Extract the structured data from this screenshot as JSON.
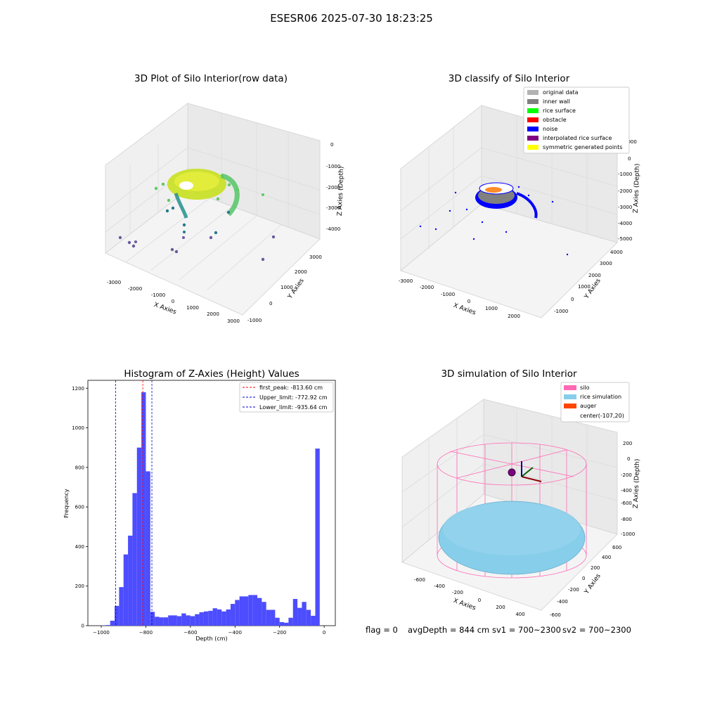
{
  "figure": {
    "suptitle": "ESESR06 2025-07-30 18:23:25"
  },
  "status_line": {
    "flag": "flag = 0",
    "avg_depth": "avgDepth = 844 cm",
    "sv1": "sv1 = 700~2300",
    "sv2": "sv2 = 700~2300"
  },
  "colors": {
    "histogram_bar": "#4d4dff",
    "first_peak_line": "#ff0000",
    "limit_lines": "#0000cc",
    "silo": "#ff69b4",
    "rice_simulation": "#87ceeb",
    "auger": "#ff4500",
    "noise": "#0000ff",
    "inner_wall": "#808080"
  },
  "chart_data": [
    {
      "type": "scatter",
      "title": "3D Plot of Silo Interior(row data)",
      "xlabel": "X Axies",
      "ylabel": "Y Axies",
      "zlabel": "Z Axies (Depth)",
      "x_ticks": [
        "-3000",
        "-2000",
        "-1000",
        "0",
        "1000",
        "2000",
        "3000"
      ],
      "y_ticks": [
        "-1000",
        "0",
        "1000",
        "2000",
        "3000"
      ],
      "z_ticks": [
        "0",
        "-1000",
        "-2000",
        "-3000",
        "-4000"
      ],
      "colormap": "viridis"
    },
    {
      "type": "scatter",
      "title": "3D classify of Silo Interior",
      "xlabel": "X Axies",
      "ylabel": "Y Axies",
      "zlabel": "Z Axies (Depth)",
      "x_ticks": [
        "-3000",
        "-2000",
        "-1000",
        "0",
        "1000",
        "2000"
      ],
      "y_ticks": [
        "-1000",
        "0",
        "1000",
        "2000",
        "3000",
        "4000"
      ],
      "z_ticks": [
        "1000",
        "0",
        "-1000",
        "-2000",
        "-3000",
        "-4000",
        "-5000"
      ],
      "legend": [
        {
          "label": "original data",
          "color": "#b3b3b3"
        },
        {
          "label": "inner wall",
          "color": "#808080"
        },
        {
          "label": "rice surface",
          "color": "#00ff00"
        },
        {
          "label": "obstacle",
          "color": "#ff0000"
        },
        {
          "label": "noise",
          "color": "#0000ff"
        },
        {
          "label": "interpolated rice surface",
          "color": "#800080"
        },
        {
          "label": "symmetric generated points",
          "color": "#ffff00"
        }
      ]
    },
    {
      "type": "bar",
      "title": "Histogram of Z-Axies (Height) Values",
      "xlabel": "Depth (cm)",
      "ylabel": "Frequency",
      "xlim": [
        -1060,
        50
      ],
      "ylim": [
        0,
        1240
      ],
      "x_ticks": [
        -1000,
        -800,
        -600,
        -400,
        -200,
        0
      ],
      "y_ticks": [
        0,
        200,
        400,
        600,
        800,
        1000,
        1200
      ],
      "bin_start": -1000,
      "bin_width": 20,
      "values": [
        2,
        3,
        25,
        100,
        195,
        360,
        455,
        670,
        900,
        1180,
        780,
        70,
        45,
        42,
        42,
        52,
        52,
        48,
        62,
        52,
        48,
        58,
        68,
        72,
        75,
        88,
        82,
        72,
        82,
        110,
        130,
        148,
        148,
        155,
        155,
        140,
        120,
        80,
        80,
        40,
        18,
        15,
        40,
        135,
        90,
        120,
        80,
        50,
        895
      ],
      "vlines": [
        {
          "value": -813.6,
          "label": "first_peak: -813.60 cm",
          "style": "dashed",
          "color": "#ff0000"
        },
        {
          "value": -772.92,
          "label": "Upper_limit: -772.92 cm",
          "style": "dashed",
          "color": "#0000cc"
        },
        {
          "value": -935.64,
          "label": "Lower_limit: -935.64 cm",
          "style": "dashed",
          "color": "#0000cc"
        }
      ],
      "legend_position": "top-right"
    },
    {
      "type": "3d-surface",
      "title": "3D simulation of Silo Interior",
      "xlabel": "X Axies",
      "ylabel": "Y Axies",
      "zlabel": "Z Axies (Depth)",
      "x_ticks": [
        "-600",
        "-400",
        "-200",
        "0",
        "200",
        "400"
      ],
      "y_ticks": [
        "-600",
        "-400",
        "-200",
        "0",
        "200",
        "400",
        "600"
      ],
      "z_ticks": [
        "200",
        "0",
        "-200",
        "-400",
        "-600",
        "-800",
        "-1000"
      ],
      "legend": [
        {
          "label": "silo",
          "color": "#ff69b4"
        },
        {
          "label": "rice simulation",
          "color": "#87ceeb"
        },
        {
          "label": "auger",
          "color": "#ff4500"
        },
        {
          "label": "center(-107,20)",
          "color": ""
        }
      ]
    }
  ]
}
